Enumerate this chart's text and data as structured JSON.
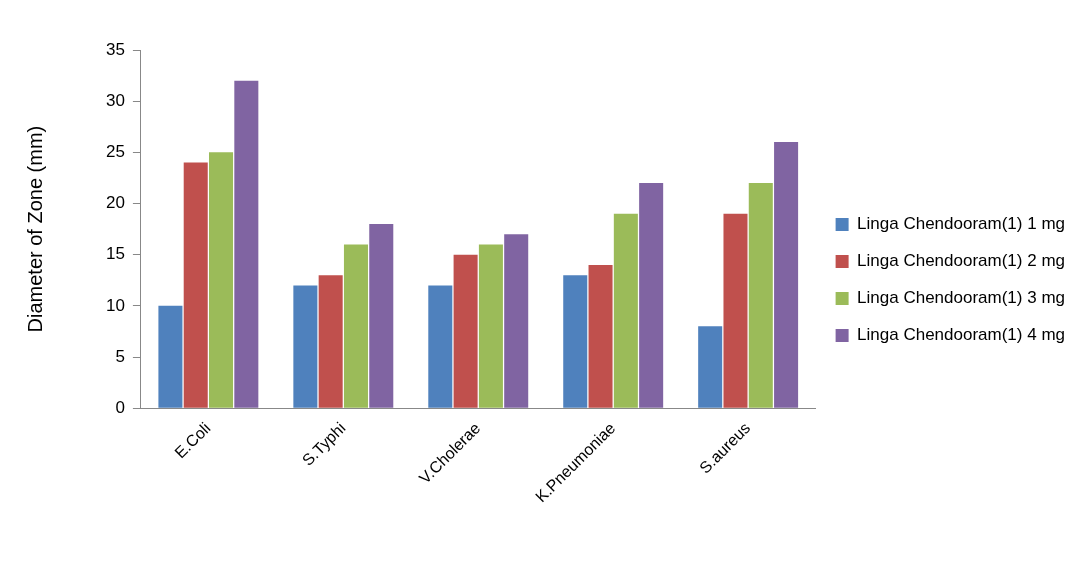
{
  "chart_data": {
    "type": "bar",
    "ylabel": "Diameter of Zone (mm)",
    "categories": [
      "E.Coli",
      "S.Typhi",
      "V.Cholerae",
      "K.Pneumoniae",
      "S.aureus"
    ],
    "series": [
      {
        "name": "Linga Chendooram(1) 1 mg",
        "color": "#4f81bd",
        "values": [
          10,
          12,
          12,
          13,
          8
        ]
      },
      {
        "name": "Linga Chendooram(1) 2 mg",
        "color": "#c0504d",
        "values": [
          24,
          13,
          15,
          14,
          19
        ]
      },
      {
        "name": "Linga Chendooram(1) 3 mg",
        "color": "#9bbb59",
        "values": [
          25,
          16,
          16,
          19,
          22
        ]
      },
      {
        "name": "Linga Chendooram(1) 4 mg",
        "color": "#8064a2",
        "values": [
          32,
          18,
          17,
          22,
          26
        ]
      }
    ],
    "ylim": [
      0,
      35
    ],
    "yticks": [
      0,
      5,
      10,
      15,
      20,
      25,
      30,
      35
    ],
    "grid": false,
    "legend": "right"
  }
}
